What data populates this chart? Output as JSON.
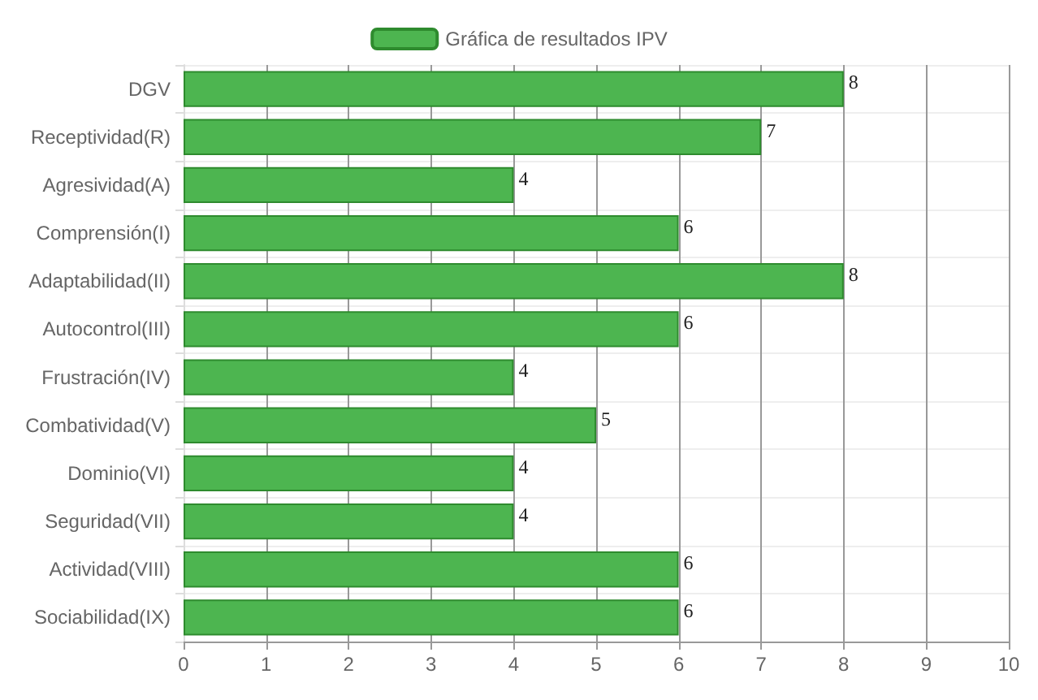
{
  "chart_data": {
    "type": "bar",
    "orientation": "horizontal",
    "categories": [
      "DGV",
      "Receptividad(R)",
      "Agresividad(A)",
      "Comprensión(I)",
      "Adaptabilidad(II)",
      "Autocontrol(III)",
      "Frustración(IV)",
      "Combatividad(V)",
      "Dominio(VI)",
      "Seguridad(VII)",
      "Actividad(VIII)",
      "Sociabilidad(IX)"
    ],
    "series": [
      {
        "name": "Gráfica de resultados IPV",
        "color": "#4db550",
        "values": [
          8,
          7,
          4,
          6,
          8,
          6,
          4,
          5,
          4,
          4,
          6,
          6
        ]
      }
    ],
    "xlim": [
      0,
      10
    ],
    "xticks": [
      0,
      1,
      2,
      3,
      4,
      5,
      6,
      7,
      8,
      9,
      10
    ],
    "grid": true,
    "legend": "top",
    "data_labels": true
  }
}
